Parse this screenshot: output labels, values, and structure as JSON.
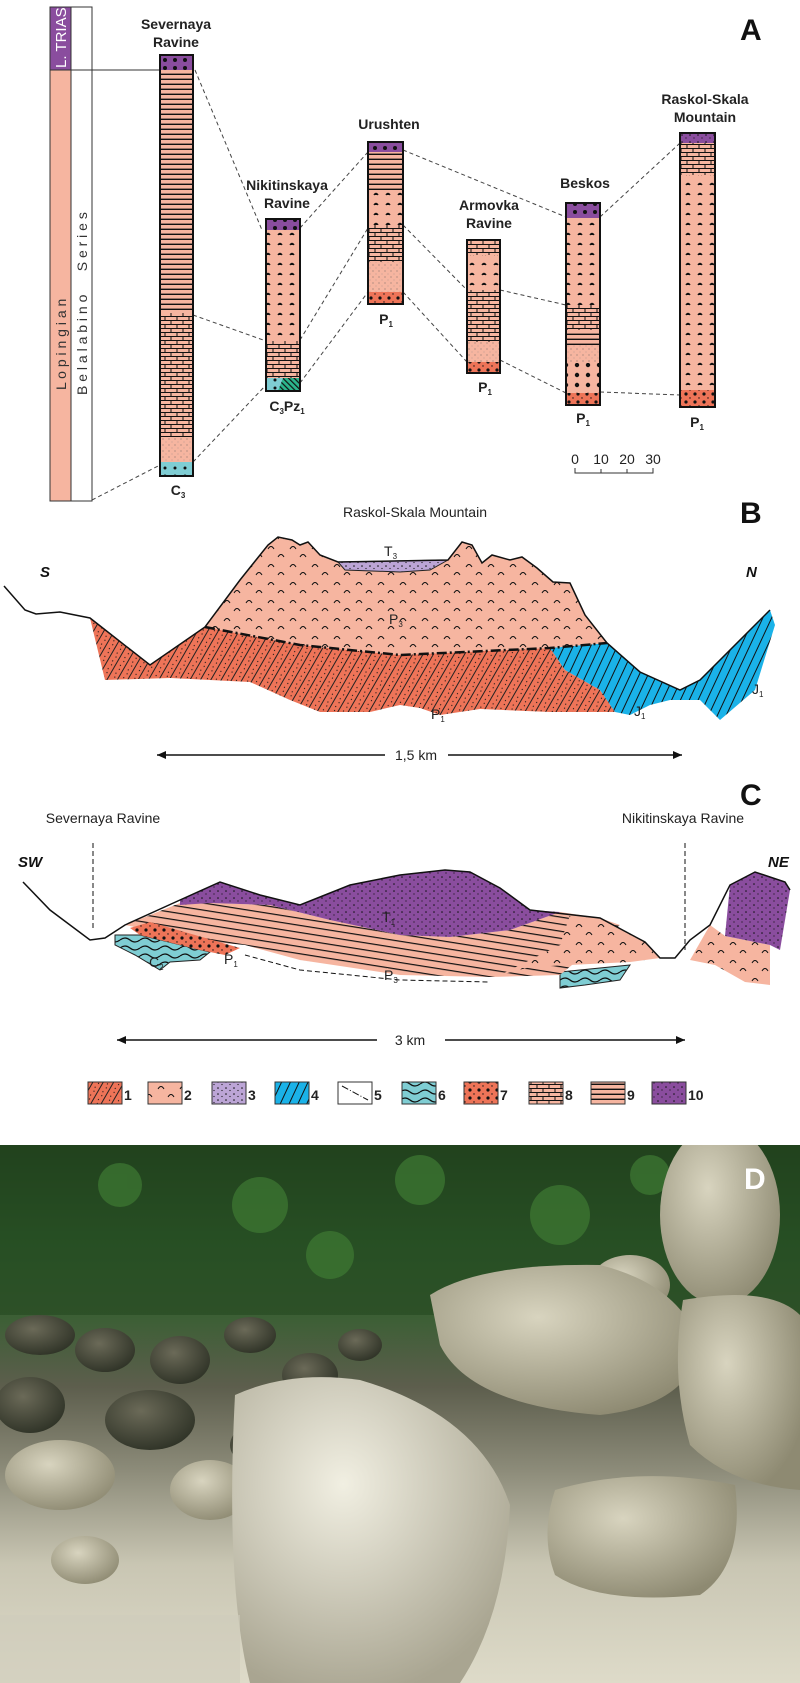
{
  "panels": {
    "a": "A",
    "b": "B",
    "c": "C",
    "d": "D"
  },
  "colors": {
    "pink": "#f6b5a0",
    "purple": "#8a4d9e",
    "red": "#ee7458",
    "blue": "#1ab2e8",
    "teal": "#7fcdd3",
    "lavender": "#bca5d6",
    "green": "#2bb58d"
  },
  "strat_column": {
    "system_top": "L. TRIAS",
    "stage": "L o p i n g i a n",
    "series": "B e l a l a b i n o      S e r i e s"
  },
  "sections": [
    {
      "name_line1": "Severnaya",
      "name_line2": "Ravine",
      "base": {
        "b": "C",
        "s": "3"
      }
    },
    {
      "name_line1": "Nikitinskaya",
      "name_line2": "Ravine",
      "base": {
        "b": "C",
        "s": "3",
        "b2": "Pz",
        "s2": "1"
      }
    },
    {
      "name_line1": "Urushten",
      "name_line2": "",
      "base": {
        "b": "P",
        "s": "1"
      }
    },
    {
      "name_line1": "Armovka",
      "name_line2": "Ravine",
      "base": {
        "b": "P",
        "s": "1"
      }
    },
    {
      "name_line1": "Beskos",
      "name_line2": "",
      "base": {
        "b": "P",
        "s": "1"
      }
    },
    {
      "name_line1": "Raskol-Skala",
      "name_line2": "Mountain",
      "base": {
        "b": "P",
        "s": "1"
      }
    }
  ],
  "scale_bar": {
    "ticks": [
      "0",
      "10",
      "20",
      "30"
    ]
  },
  "section_b": {
    "title": "Raskol-Skala Mountain",
    "left_dir": "S",
    "right_dir": "N",
    "units": [
      {
        "b": "T",
        "s": "3"
      },
      {
        "b": "P",
        "s": "3"
      },
      {
        "b": "P",
        "s": "1"
      },
      {
        "b": "J",
        "s": "1"
      },
      {
        "b": "J",
        "s": "1"
      }
    ],
    "distance": "1,5 km"
  },
  "section_c": {
    "left_label": "Severnaya Ravine",
    "right_label": "Nikitinskaya Ravine",
    "left_dir": "SW",
    "right_dir": "NE",
    "units": [
      {
        "b": "T",
        "s": "1"
      },
      {
        "b": "C",
        "s": "2"
      },
      {
        "b": "P",
        "s": "1"
      },
      {
        "b": "P",
        "s": "3"
      }
    ],
    "distance": "3 km"
  },
  "legend": [
    "1",
    "2",
    "3",
    "4",
    "5",
    "6",
    "7",
    "8",
    "9",
    "10"
  ]
}
